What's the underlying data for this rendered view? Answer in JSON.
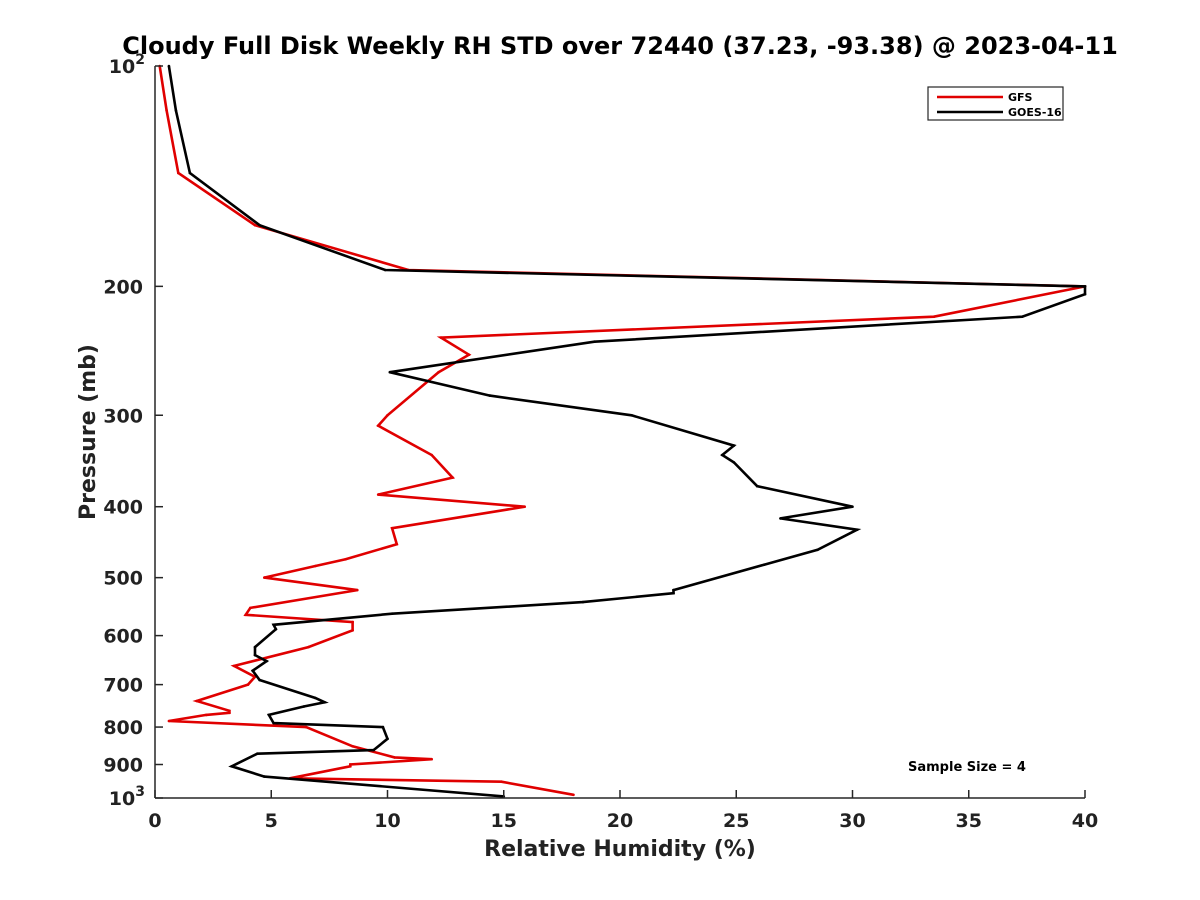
{
  "chart_data": {
    "type": "line",
    "title": "Cloudy Full Disk Weekly RH STD over 72440 (37.23, -93.38) @ 2023-04-11",
    "xlabel": "Relative Humidity (%)",
    "ylabel": "Pressure (mb)",
    "xlim": [
      0,
      40
    ],
    "ylim": [
      100,
      1000
    ],
    "y_scale": "log",
    "y_reversed": true,
    "x_ticks": [
      0,
      5,
      10,
      15,
      20,
      25,
      30,
      35,
      40
    ],
    "y_ticks": [
      {
        "value": 100,
        "label": "10",
        "sup": "2"
      },
      {
        "value": 200,
        "label": "200"
      },
      {
        "value": 300,
        "label": "300"
      },
      {
        "value": 400,
        "label": "400"
      },
      {
        "value": 500,
        "label": "500"
      },
      {
        "value": 600,
        "label": "600"
      },
      {
        "value": 700,
        "label": "700"
      },
      {
        "value": 800,
        "label": "800"
      },
      {
        "value": 900,
        "label": "900"
      },
      {
        "value": 1000,
        "label": "10",
        "sup": "3"
      }
    ],
    "legend_position": "top-right",
    "grid": false,
    "annotation": "Sample Size = 4",
    "series": [
      {
        "name": "GFS",
        "color": "#e00000",
        "points": [
          [
            0.2,
            100
          ],
          [
            0.5,
            115
          ],
          [
            1.0,
            140
          ],
          [
            4.3,
            165
          ],
          [
            10.9,
            190
          ],
          [
            40.0,
            200
          ],
          [
            33.5,
            220
          ],
          [
            12.3,
            235
          ],
          [
            13.5,
            248
          ],
          [
            12.2,
            262
          ],
          [
            10.0,
            300
          ],
          [
            9.6,
            310
          ],
          [
            11.9,
            340
          ],
          [
            12.8,
            365
          ],
          [
            9.6,
            385
          ],
          [
            15.9,
            400
          ],
          [
            10.2,
            428
          ],
          [
            10.4,
            450
          ],
          [
            8.2,
            472
          ],
          [
            6.9,
            482
          ],
          [
            4.7,
            500
          ],
          [
            8.7,
            520
          ],
          [
            4.1,
            550
          ],
          [
            3.9,
            562
          ],
          [
            8.5,
            575
          ],
          [
            8.5,
            590
          ],
          [
            6.6,
            622
          ],
          [
            3.4,
            660
          ],
          [
            4.3,
            683
          ],
          [
            4.0,
            700
          ],
          [
            1.8,
            737
          ],
          [
            3.2,
            760
          ],
          [
            3.2,
            765
          ],
          [
            2.2,
            770
          ],
          [
            0.6,
            785
          ],
          [
            6.5,
            800
          ],
          [
            8.5,
            850
          ],
          [
            10.3,
            880
          ],
          [
            11.9,
            885
          ],
          [
            8.4,
            900
          ],
          [
            8.4,
            905
          ],
          [
            5.8,
            940
          ],
          [
            14.9,
            950
          ],
          [
            18.0,
            990
          ]
        ]
      },
      {
        "name": "GOES-16",
        "color": "#000000",
        "points": [
          [
            0.6,
            100
          ],
          [
            0.9,
            115
          ],
          [
            1.5,
            140
          ],
          [
            4.5,
            165
          ],
          [
            9.9,
            190
          ],
          [
            40.0,
            200
          ],
          [
            40.0,
            205
          ],
          [
            37.3,
            220
          ],
          [
            18.9,
            238
          ],
          [
            10.1,
            262
          ],
          [
            14.4,
            282
          ],
          [
            20.5,
            300
          ],
          [
            24.9,
            330
          ],
          [
            24.4,
            340
          ],
          [
            24.9,
            348
          ],
          [
            25.9,
            375
          ],
          [
            30.0,
            400
          ],
          [
            26.9,
            415
          ],
          [
            30.2,
            430
          ],
          [
            28.5,
            458
          ],
          [
            26.2,
            480
          ],
          [
            22.3,
            520
          ],
          [
            22.3,
            525
          ],
          [
            18.4,
            540
          ],
          [
            10.2,
            560
          ],
          [
            5.1,
            580
          ],
          [
            5.2,
            588
          ],
          [
            4.3,
            622
          ],
          [
            4.3,
            638
          ],
          [
            4.8,
            650
          ],
          [
            4.2,
            670
          ],
          [
            4.5,
            690
          ],
          [
            6.9,
            730
          ],
          [
            7.3,
            740
          ],
          [
            6.4,
            750
          ],
          [
            4.9,
            770
          ],
          [
            5.1,
            790
          ],
          [
            9.8,
            800
          ],
          [
            10.0,
            830
          ],
          [
            9.4,
            860
          ],
          [
            4.4,
            870
          ],
          [
            3.3,
            905
          ],
          [
            4.7,
            935
          ],
          [
            15.0,
            995
          ]
        ]
      }
    ]
  }
}
